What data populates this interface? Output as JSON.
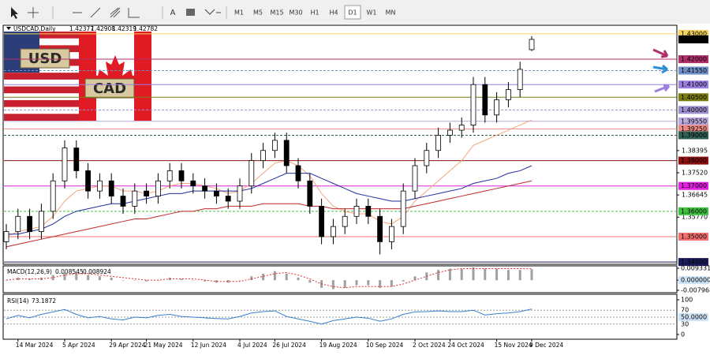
{
  "toolbar": {
    "text_tool": "A",
    "timeframes": [
      "M1",
      "M5",
      "M15",
      "M30",
      "H1",
      "H4",
      "D1",
      "W1",
      "MN"
    ],
    "active": "D1"
  },
  "logo": {
    "base": "USD",
    "quote": "CAD"
  },
  "chart_data": {
    "type": "candlestick",
    "title": "USDCAD,Daily",
    "categories": [
      null,
      "14 Mar 2024",
      null,
      null,
      null,
      "5 Apr 2024",
      null,
      null,
      null,
      "29 Apr 2024",
      null,
      null,
      "21 May 2024",
      null,
      null,
      null,
      "12 Jun 2024",
      null,
      null,
      null,
      "4 Jul 2024",
      null,
      null,
      "26 Jul 2024",
      null,
      null,
      null,
      "19 Aug 2024",
      null,
      null,
      null,
      "10 Sep 2024",
      null,
      null,
      null,
      "2 Oct 2024",
      null,
      null,
      "24 Oct 2024",
      null,
      null,
      null,
      "15 Nov 2024",
      null,
      null,
      "9 Dec 2024"
    ],
    "candles": [
      [
        1.348,
        1.355,
        1.345,
        1.352
      ],
      [
        1.352,
        1.361,
        1.349,
        1.358
      ],
      [
        1.358,
        1.361,
        1.349,
        1.352
      ],
      [
        1.352,
        1.363,
        1.349,
        1.36
      ],
      [
        1.36,
        1.375,
        1.357,
        1.372
      ],
      [
        1.372,
        1.388,
        1.369,
        1.385
      ],
      [
        1.385,
        1.388,
        1.373,
        1.376
      ],
      [
        1.376,
        1.379,
        1.365,
        1.368
      ],
      [
        1.368,
        1.375,
        1.365,
        1.372
      ],
      [
        1.372,
        1.375,
        1.363,
        1.366
      ],
      [
        1.366,
        1.369,
        1.359,
        1.362
      ],
      [
        1.362,
        1.371,
        1.359,
        1.368
      ],
      [
        1.368,
        1.371,
        1.363,
        1.366
      ],
      [
        1.366,
        1.375,
        1.363,
        1.372
      ],
      [
        1.372,
        1.379,
        1.369,
        1.376
      ],
      [
        1.376,
        1.379,
        1.369,
        1.372
      ],
      [
        1.372,
        1.375,
        1.367,
        1.37
      ],
      [
        1.37,
        1.373,
        1.365,
        1.368
      ],
      [
        1.368,
        1.371,
        1.363,
        1.366
      ],
      [
        1.366,
        1.369,
        1.361,
        1.364
      ],
      [
        1.364,
        1.373,
        1.361,
        1.37
      ],
      [
        1.37,
        1.383,
        1.367,
        1.38
      ],
      [
        1.38,
        1.387,
        1.377,
        1.384
      ],
      [
        1.384,
        1.391,
        1.381,
        1.388
      ],
      [
        1.388,
        1.391,
        1.375,
        1.378
      ],
      [
        1.378,
        1.381,
        1.369,
        1.372
      ],
      [
        1.372,
        1.375,
        1.359,
        1.362
      ],
      [
        1.362,
        1.365,
        1.347,
        1.35
      ],
      [
        1.35,
        1.357,
        1.347,
        1.354
      ],
      [
        1.354,
        1.361,
        1.351,
        1.358
      ],
      [
        1.358,
        1.365,
        1.355,
        1.362
      ],
      [
        1.362,
        1.365,
        1.355,
        1.358
      ],
      [
        1.358,
        1.361,
        1.343,
        1.348
      ],
      [
        1.348,
        1.357,
        1.345,
        1.354
      ],
      [
        1.354,
        1.371,
        1.351,
        1.368
      ],
      [
        1.368,
        1.381,
        1.365,
        1.378
      ],
      [
        1.378,
        1.387,
        1.375,
        1.384
      ],
      [
        1.384,
        1.393,
        1.381,
        1.39
      ],
      [
        1.39,
        1.395,
        1.387,
        1.392
      ],
      [
        1.392,
        1.397,
        1.389,
        1.394
      ],
      [
        1.394,
        1.413,
        1.391,
        1.41
      ],
      [
        1.41,
        1.413,
        1.395,
        1.398
      ],
      [
        1.398,
        1.407,
        1.395,
        1.404
      ],
      [
        1.404,
        1.411,
        1.401,
        1.408
      ],
      [
        1.408,
        1.419,
        1.405,
        1.416
      ],
      [
        1.42377,
        1.42908,
        1.42319,
        1.42782
      ]
    ],
    "up_color": "#ffffff",
    "down_color": "#000000",
    "candle_stroke": "#000000",
    "ma": [
      {
        "color": "#f4a37a",
        "values": [
          1.35,
          1.352,
          1.353,
          1.354,
          1.358,
          1.364,
          1.368,
          1.369,
          1.37,
          1.37,
          1.368,
          1.368,
          1.367,
          1.368,
          1.37,
          1.371,
          1.371,
          1.37,
          1.369,
          1.367,
          1.368,
          1.371,
          1.375,
          1.379,
          1.38,
          1.378,
          1.374,
          1.367,
          1.362,
          1.36,
          1.359,
          1.359,
          1.356,
          1.355,
          1.358,
          1.364,
          1.368,
          1.372,
          1.376,
          1.38,
          1.386,
          1.388,
          1.39,
          1.392,
          1.394,
          1.396
        ]
      },
      {
        "color": "#1f2f9f",
        "values": [
          1.351,
          1.351,
          1.352,
          1.353,
          1.355,
          1.358,
          1.36,
          1.361,
          1.362,
          1.363,
          1.363,
          1.364,
          1.365,
          1.366,
          1.367,
          1.367,
          1.368,
          1.368,
          1.368,
          1.368,
          1.368,
          1.369,
          1.371,
          1.373,
          1.375,
          1.375,
          1.375,
          1.373,
          1.371,
          1.369,
          1.367,
          1.366,
          1.365,
          1.364,
          1.364,
          1.365,
          1.366,
          1.367,
          1.368,
          1.369,
          1.371,
          1.372,
          1.373,
          1.375,
          1.376,
          1.378
        ]
      },
      {
        "color": "#c0282a",
        "values": [
          1.346,
          1.347,
          1.348,
          1.349,
          1.35,
          1.351,
          1.352,
          1.353,
          1.354,
          1.355,
          1.356,
          1.357,
          1.357,
          1.358,
          1.359,
          1.36,
          1.36,
          1.361,
          1.361,
          1.362,
          1.362,
          1.362,
          1.363,
          1.363,
          1.363,
          1.363,
          1.362,
          1.362,
          1.361,
          1.361,
          1.361,
          1.361,
          1.361,
          1.361,
          1.361,
          1.362,
          1.363,
          1.364,
          1.365,
          1.366,
          1.367,
          1.368,
          1.369,
          1.37,
          1.371,
          1.372
        ]
      }
    ],
    "ylim": [
      1.3391,
      1.4334
    ],
    "yticks": [
      1.38395,
      {
        "value": 1.3752,
        "label": "1.37520"
      },
      1.36645,
      {
        "value": 1.3577,
        "label": "1.35770"
      }
    ],
    "levels": [
      {
        "value": 1.43,
        "label": "1.43000",
        "color": "#f2d25c"
      },
      {
        "value": 1.42,
        "label": "1.42000",
        "color": "#b0306a"
      },
      {
        "value": 1.4155,
        "label": "1.41550",
        "color": "#6f8fc8"
      },
      {
        "value": 1.41,
        "label": "1.41000",
        "color": "#9b7fe0"
      },
      {
        "value": 1.405,
        "label": "1.40500",
        "color": "#7c7c14"
      },
      {
        "value": 1.4,
        "label": "1.40000",
        "color": "#9d8fcf"
      },
      {
        "value": 1.3955,
        "label": "1.39550",
        "color": "#b9a9dc"
      },
      {
        "value": 1.3925,
        "label": "1.39250",
        "color": "#ee8a84"
      },
      {
        "value": 1.39,
        "label": "1.39000",
        "color": "#2f5f55"
      },
      {
        "value": 1.38,
        "label": "1.38000",
        "color": "#8b1010"
      },
      {
        "value": 1.37,
        "label": "1.37000",
        "color": "#e020e0"
      },
      {
        "value": 1.36,
        "label": "1.36000",
        "color": "#40c040"
      },
      {
        "value": 1.35,
        "label": "1.35000",
        "color": "#f07070"
      },
      {
        "value": 1.34,
        "label": "1.34000",
        "color": "#1c1c5c"
      }
    ],
    "macd": {
      "title": "MACD(12,26,9)",
      "color": "#a0a0a0",
      "signal_color": "#e03030",
      "histogram": [
        0.0,
        0.002,
        0.001,
        0.002,
        0.004,
        0.007,
        0.006,
        0.004,
        0.003,
        0.002,
        0.0,
        0.0,
        -0.001,
        0.0,
        0.002,
        0.001,
        0.0,
        -0.001,
        -0.002,
        -0.002,
        0.0,
        0.003,
        0.005,
        0.007,
        0.005,
        0.002,
        -0.002,
        -0.006,
        -0.007,
        -0.006,
        -0.004,
        -0.004,
        -0.006,
        -0.005,
        -0.001,
        0.003,
        0.006,
        0.008,
        0.009,
        0.009,
        0.01,
        0.009,
        0.009,
        0.008,
        0.008,
        0.008545
      ],
      "signal": [
        0.0,
        0.001,
        0.001,
        0.001,
        0.002,
        0.004,
        0.005,
        0.005,
        0.004,
        0.003,
        0.002,
        0.001,
        0.0,
        0.0,
        0.001,
        0.001,
        0.001,
        0.0,
        -0.001,
        -0.001,
        -0.001,
        0.001,
        0.003,
        0.005,
        0.006,
        0.004,
        0.001,
        -0.003,
        -0.005,
        -0.006,
        -0.005,
        -0.005,
        -0.005,
        -0.005,
        -0.003,
        0.0,
        0.003,
        0.006,
        0.008,
        0.009,
        0.009,
        0.009,
        0.009,
        0.009,
        0.009,
        0.008924
      ],
      "ylim": [
        -0.007968,
        0.009331
      ],
      "yticks": [
        0.009331,
        {
          "value": 0,
          "label": "0.000000"
        },
        -0.007968
      ]
    },
    "rsi": {
      "title": "RSI(14)",
      "color": "#3a7fd0",
      "values": [
        45,
        55,
        48,
        58,
        65,
        72,
        58,
        48,
        52,
        45,
        42,
        50,
        48,
        55,
        58,
        52,
        50,
        48,
        46,
        45,
        52,
        62,
        66,
        68,
        52,
        45,
        38,
        30,
        40,
        45,
        50,
        47,
        38,
        45,
        58,
        65,
        66,
        68,
        66,
        66,
        70,
        56,
        60,
        62,
        66,
        73.1872
      ],
      "ylim": [
        0,
        100
      ],
      "yticks": [
        100,
        70,
        {
          "value": 50,
          "label": "50.0000"
        },
        30,
        0
      ]
    }
  }
}
